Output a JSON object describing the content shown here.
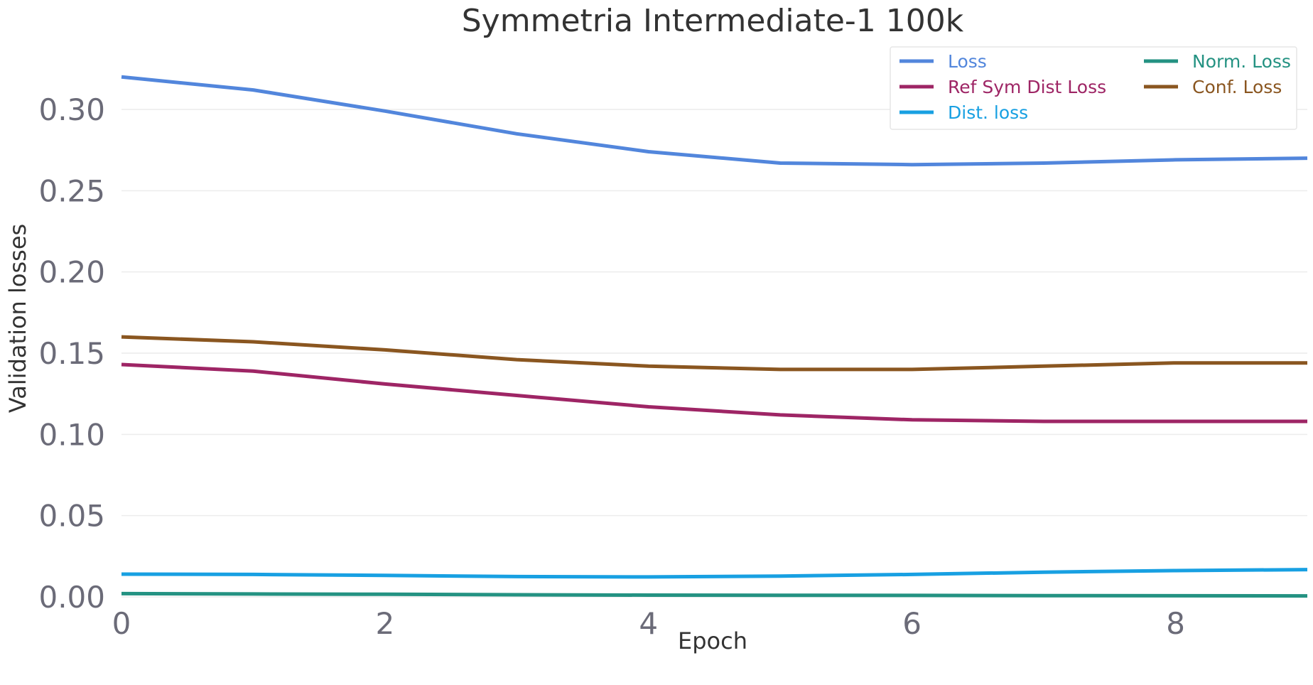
{
  "chart_data": {
    "type": "line",
    "title": "Symmetria Intermediate-1 100k",
    "xlabel": "Epoch",
    "ylabel": "Validation losses",
    "xlim": [
      0,
      9
    ],
    "ylim": [
      0,
      0.33
    ],
    "x_ticks": [
      "0",
      "2",
      "4",
      "6",
      "8"
    ],
    "y_ticks": [
      "0.00",
      "0.05",
      "0.10",
      "0.15",
      "0.20",
      "0.25",
      "0.30"
    ],
    "grid": "horizontal",
    "legend_position": "top-right",
    "x": [
      0,
      1,
      2,
      3,
      4,
      5,
      6,
      7,
      8,
      9
    ],
    "series": [
      {
        "name": "Loss",
        "color": "#5286dc",
        "values": [
          0.32,
          0.312,
          0.299,
          0.285,
          0.274,
          0.267,
          0.266,
          0.267,
          0.269,
          0.27
        ]
      },
      {
        "name": "Norm. Loss",
        "color": "#249282",
        "values": [
          0.002,
          0.0018,
          0.0016,
          0.0013,
          0.0011,
          0.001,
          0.0009,
          0.0008,
          0.0007,
          0.0006
        ]
      },
      {
        "name": "Ref Sym Dist Loss",
        "color": "#9e2565",
        "values": [
          0.143,
          0.139,
          0.131,
          0.124,
          0.117,
          0.112,
          0.109,
          0.108,
          0.108,
          0.108
        ]
      },
      {
        "name": "Conf. Loss",
        "color": "#8a5620",
        "values": [
          0.16,
          0.157,
          0.152,
          0.146,
          0.142,
          0.14,
          0.14,
          0.142,
          0.144,
          0.144
        ]
      },
      {
        "name": "Dist. loss",
        "color": "#18a0e2",
        "values": [
          0.014,
          0.0138,
          0.0132,
          0.0125,
          0.0123,
          0.0128,
          0.0138,
          0.0152,
          0.0162,
          0.0168
        ]
      }
    ]
  }
}
